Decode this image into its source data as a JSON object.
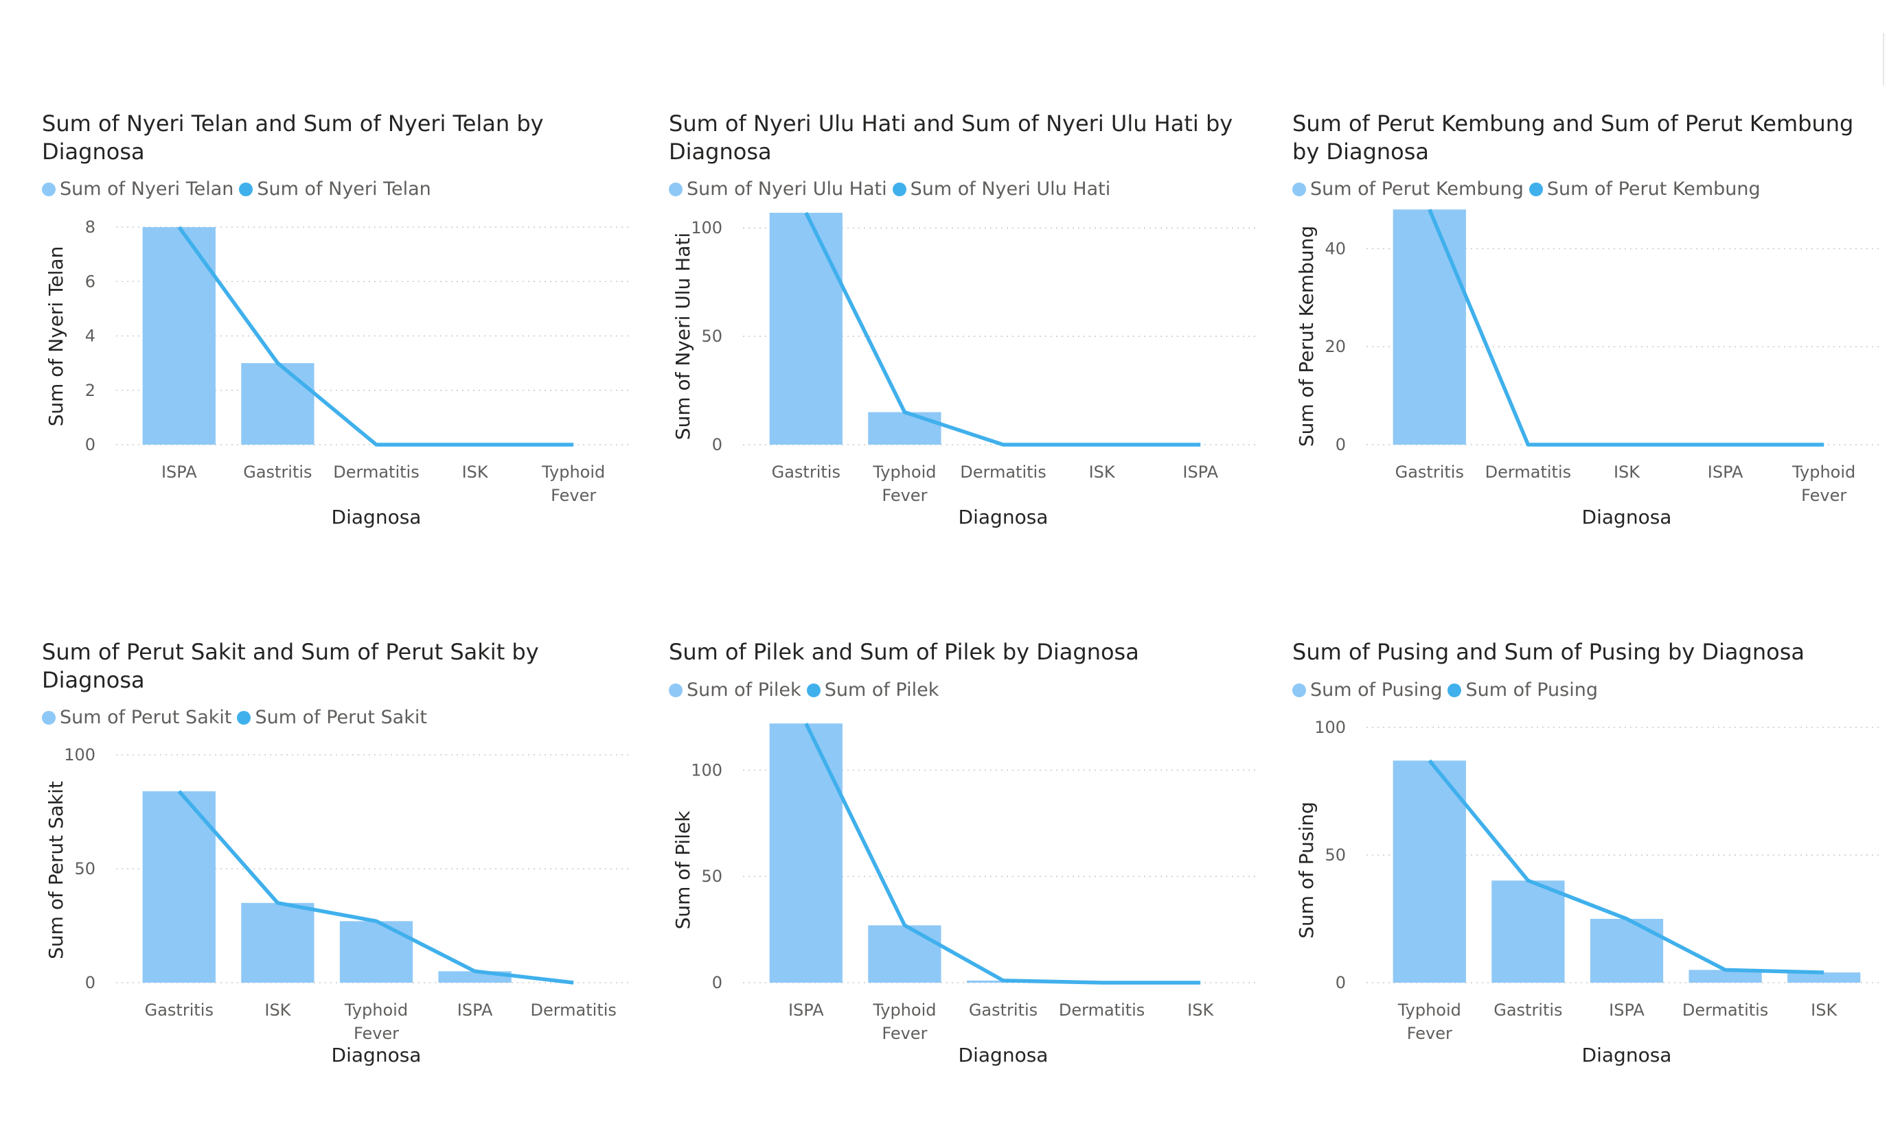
{
  "colors": {
    "bar": "#8ec8f6",
    "line": "#40b0ec",
    "grid": "#c8c8c8"
  },
  "chart_data": [
    {
      "type": "bar",
      "title": "Sum of Nyeri Telan and Sum of Nyeri Telan by Diagnosa",
      "legend": [
        "Sum of Nyeri Telan",
        "Sum of Nyeri Telan"
      ],
      "xlabel": "Diagnosa",
      "ylabel": "Sum of Nyeri Telan",
      "categories": [
        "ISPA",
        "Gastritis",
        "Dermatitis",
        "ISK",
        "Typhoid Fever"
      ],
      "series": [
        {
          "name": "Sum of Nyeri Telan",
          "kind": "bar",
          "values": [
            8,
            3,
            0,
            0,
            0
          ]
        },
        {
          "name": "Sum of Nyeri Telan",
          "kind": "line",
          "values": [
            8,
            3,
            0,
            0,
            0
          ]
        }
      ],
      "yticks": [
        0,
        2,
        4,
        6,
        8
      ],
      "ylim": [
        0,
        8
      ]
    },
    {
      "type": "bar",
      "title": "Sum of Nyeri Ulu Hati and Sum of Nyeri Ulu Hati by Diagnosa",
      "legend": [
        "Sum of Nyeri Ulu Hati",
        "Sum of Nyeri Ulu Hati"
      ],
      "xlabel": "Diagnosa",
      "ylabel": "Sum of Nyeri Ulu Hati",
      "categories": [
        "Gastritis",
        "Typhoid Fever",
        "Dermatitis",
        "ISK",
        "ISPA"
      ],
      "series": [
        {
          "name": "Sum of Nyeri Ulu Hati",
          "kind": "bar",
          "values": [
            107,
            15,
            0,
            0,
            0
          ]
        },
        {
          "name": "Sum of Nyeri Ulu Hati",
          "kind": "line",
          "values": [
            107,
            15,
            0,
            0,
            0
          ]
        }
      ],
      "yticks": [
        0,
        50,
        100
      ],
      "ylim": [
        0,
        120
      ]
    },
    {
      "type": "bar",
      "title": "Sum of Perut Kembung and Sum of Perut Kembung by Diagnosa",
      "legend": [
        "Sum of Perut Kembung",
        "Sum of Perut Kembung"
      ],
      "xlabel": "Diagnosa",
      "ylabel": "Sum of Perut Kembung",
      "categories": [
        "Gastritis",
        "Dermatitis",
        "ISK",
        "ISPA",
        "Typhoid Fever"
      ],
      "series": [
        {
          "name": "Sum of Perut Kembung",
          "kind": "bar",
          "values": [
            48,
            0,
            0,
            0,
            0
          ]
        },
        {
          "name": "Sum of Perut Kembung",
          "kind": "line",
          "values": [
            48,
            0,
            0,
            0,
            0
          ]
        }
      ],
      "yticks": [
        0,
        20,
        40
      ],
      "ylim": [
        0,
        50
      ]
    },
    {
      "type": "bar",
      "title": "Sum of Perut Sakit and Sum of Perut Sakit by Diagnosa",
      "legend": [
        "Sum of Perut Sakit",
        "Sum of Perut Sakit"
      ],
      "xlabel": "Diagnosa",
      "ylabel": "Sum of Perut Sakit",
      "categories": [
        "Gastritis",
        "ISK",
        "Typhoid Fever",
        "ISPA",
        "Dermatitis"
      ],
      "series": [
        {
          "name": "Sum of Perut Sakit",
          "kind": "bar",
          "values": [
            84,
            35,
            27,
            5,
            0
          ]
        },
        {
          "name": "Sum of Perut Sakit",
          "kind": "line",
          "values": [
            84,
            35,
            27,
            5,
            0
          ]
        }
      ],
      "yticks": [
        0,
        50,
        100
      ],
      "ylim": [
        0,
        100
      ]
    },
    {
      "type": "bar",
      "title": "Sum of Pilek and Sum of Pilek by Diagnosa",
      "legend": [
        "Sum of Pilek",
        "Sum of Pilek"
      ],
      "xlabel": "Diagnosa",
      "ylabel": "Sum of Pilek",
      "categories": [
        "ISPA",
        "Typhoid Fever",
        "Gastritis",
        "Dermatitis",
        "ISK"
      ],
      "series": [
        {
          "name": "Sum of Pilek",
          "kind": "bar",
          "values": [
            122,
            27,
            1,
            0,
            0
          ]
        },
        {
          "name": "Sum of Pilek",
          "kind": "line",
          "values": [
            122,
            27,
            1,
            0,
            0
          ]
        }
      ],
      "yticks": [
        0,
        50,
        100
      ],
      "ylim": [
        0,
        125
      ]
    },
    {
      "type": "bar",
      "title": "Sum of Pusing and Sum of Pusing by Diagnosa",
      "legend": [
        "Sum of Pusing",
        "Sum of Pusing"
      ],
      "xlabel": "Diagnosa",
      "ylabel": "Sum of Pusing",
      "categories": [
        "Typhoid Fever",
        "Gastritis",
        "ISPA",
        "Dermatitis",
        "ISK"
      ],
      "series": [
        {
          "name": "Sum of Pusing",
          "kind": "bar",
          "values": [
            87,
            40,
            25,
            5,
            4
          ]
        },
        {
          "name": "Sum of Pusing",
          "kind": "line",
          "values": [
            87,
            40,
            25,
            5,
            4
          ]
        }
      ],
      "yticks": [
        0,
        50,
        100
      ],
      "ylim": [
        0,
        100
      ]
    }
  ]
}
